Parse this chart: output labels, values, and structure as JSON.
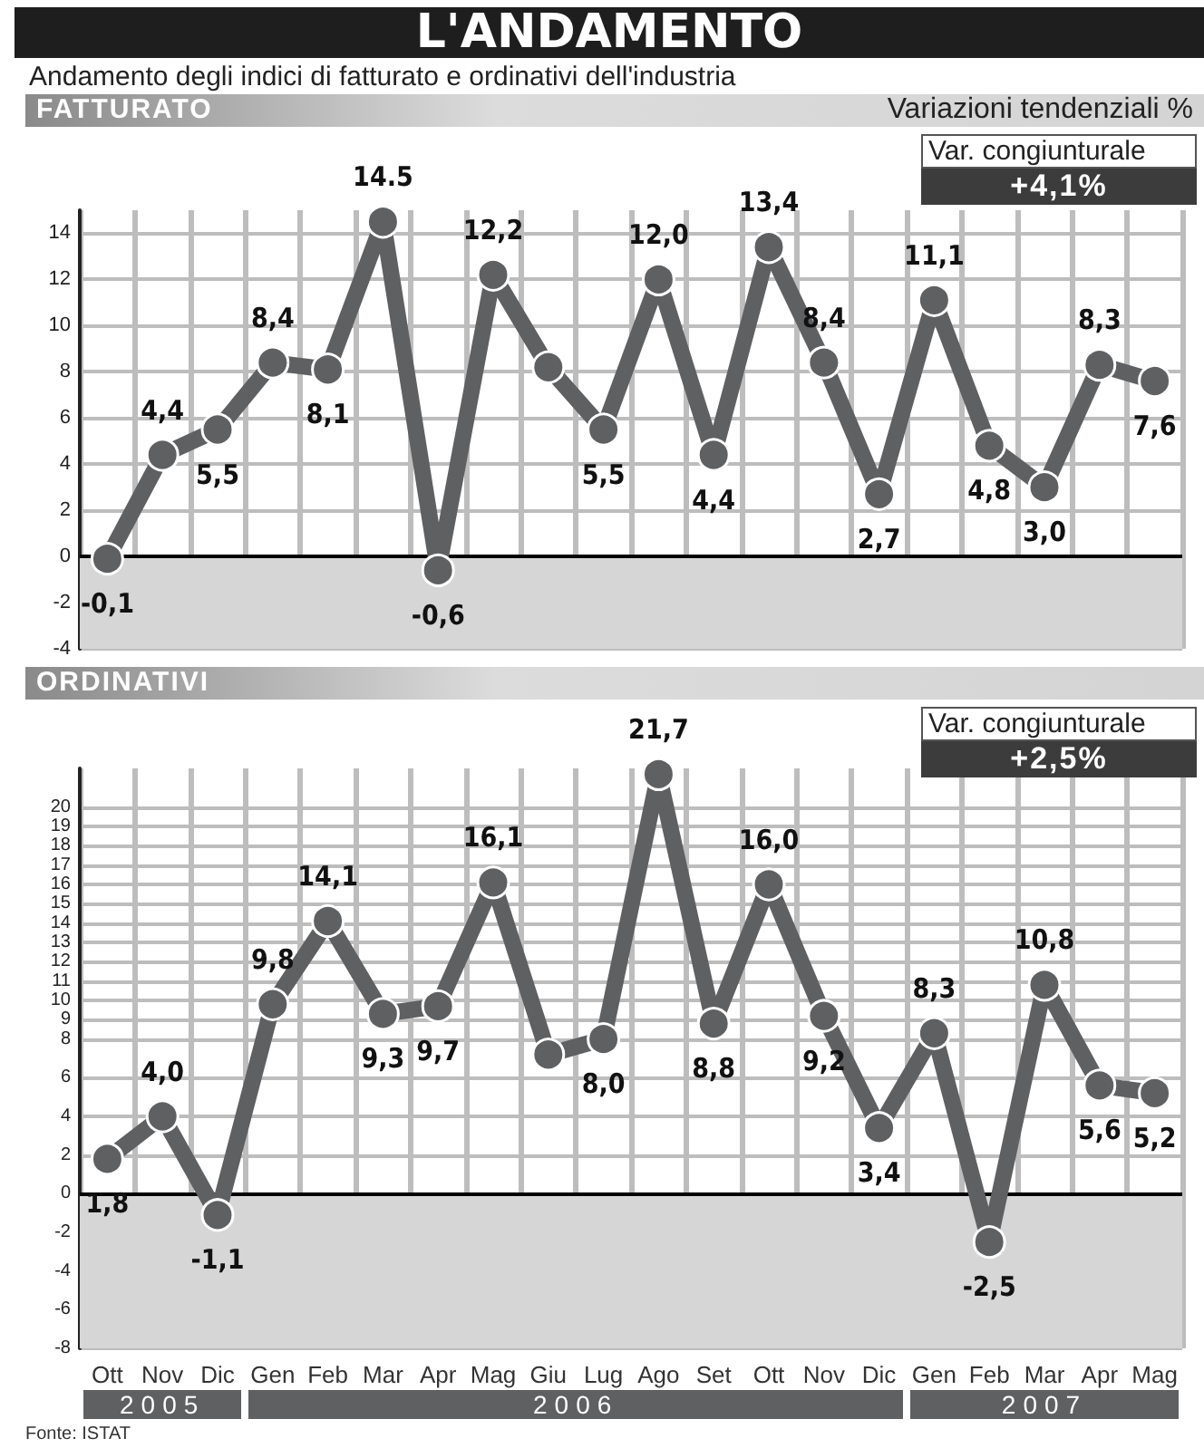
{
  "chart_data": [
    {
      "type": "line",
      "title": "L'ANDAMENTO",
      "subtitle": "Andamento degli indici di fatturato e ordinativi dell'industria",
      "annotations": [
        "FATTURATO",
        "Variazioni tendenziali %",
        "Var. congiunturale",
        "+4,1%"
      ],
      "categories": [
        null,
        null,
        null,
        null,
        null,
        null,
        null,
        null,
        null,
        null,
        null,
        null,
        null,
        null,
        null,
        null,
        null,
        null,
        null,
        null
      ],
      "series": [
        {
          "color": "#5f6062",
          "values": [
            -0.1,
            4.4,
            5.5,
            8.4,
            8.1,
            14.5,
            -0.6,
            12.2,
            8.2,
            5.5,
            12.0,
            4.4,
            13.4,
            8.4,
            2.7,
            11.1,
            4.8,
            3.0,
            8.3,
            7.6
          ],
          "value_labels": [
            "-0,1",
            "4,4",
            "5,5",
            "8,4",
            "8,1",
            "14.5",
            "-0,6",
            "12,2",
            null,
            "5,5",
            "12,0",
            "4,4",
            "13,4",
            "8,4",
            "2,7",
            "11,1",
            "4,8",
            "3,0",
            "8,3",
            "7,6"
          ]
        }
      ],
      "ylim": [
        -4,
        15
      ],
      "yticks": [
        -4,
        -2,
        0,
        2,
        4,
        6,
        8,
        10,
        12,
        14
      ],
      "tick_labels": "y",
      "grid": true,
      "marker": "circle",
      "line_style": "solid",
      "bands": [
        {
          "axis": "y",
          "from": -4,
          "to": 0,
          "color": "#d6d6d6"
        }
      ],
      "ref_lines": [
        {
          "axis": "y",
          "value": 0,
          "color": "#000000"
        }
      ]
    },
    {
      "type": "line",
      "title": "ORDINATIVI",
      "annotations": [
        "Var. congiunturale",
        "+2,5%",
        "2005",
        "2006",
        "2007",
        "Fonte: ISTAT"
      ],
      "categories": [
        "Ott",
        "Nov",
        "Dic",
        "Gen",
        "Feb",
        "Mar",
        "Apr",
        "Mag",
        "Giu",
        "Lug",
        "Ago",
        "Set",
        "Ott",
        "Nov",
        "Dic",
        "Gen",
        "Feb",
        "Mar",
        "Apr",
        "Mag"
      ],
      "series": [
        {
          "color": "#5f6062",
          "values": [
            1.8,
            4.0,
            -1.1,
            9.8,
            14.1,
            9.3,
            9.7,
            16.1,
            7.2,
            8.0,
            21.7,
            8.8,
            16.0,
            9.2,
            3.4,
            8.3,
            -2.5,
            10.8,
            5.6,
            5.2
          ],
          "value_labels": [
            "1,8",
            "4,0",
            "-1,1",
            "9,8",
            "14,1",
            "9,3",
            "9,7",
            "16,1",
            null,
            "8,0",
            "21,7",
            "8,8",
            "16,0",
            "9,2",
            "3,4",
            "8,3",
            "-2,5",
            "10,8",
            "5,6",
            "5,2"
          ]
        }
      ],
      "ylim": [
        -8,
        22
      ],
      "yticks": [
        -8,
        -6,
        -4,
        -2,
        0,
        2,
        4,
        6,
        8,
        9,
        10,
        11,
        12,
        13,
        14,
        15,
        16,
        17,
        18,
        19,
        20
      ],
      "grid": true,
      "marker": "circle",
      "line_style": "solid",
      "bands": [
        {
          "axis": "y",
          "from": -8,
          "to": 0,
          "color": "#d6d6d6"
        }
      ],
      "ref_lines": [
        {
          "axis": "y",
          "value": 0,
          "color": "#000000"
        }
      ]
    }
  ]
}
